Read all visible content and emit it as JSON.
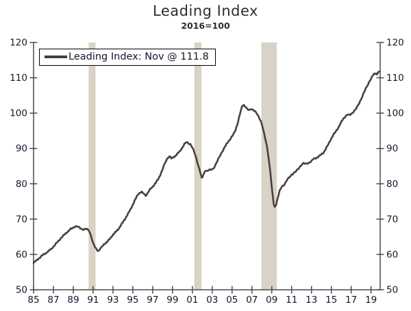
{
  "chart": {
    "title": "Leading Index",
    "subtitle": "2016=100"
  },
  "legend": {
    "label": "Leading Index: Nov @ 111.8"
  },
  "colors": {
    "line": "#4a3f3a",
    "recession_band": "#d7d3c5",
    "axis": "#4a4a4a",
    "tick_text": "#15152a",
    "background": "#ffffff"
  },
  "chart_data": {
    "type": "line",
    "title": "Leading Index",
    "subtitle": "2016=100",
    "xlabel": "",
    "ylabel": "",
    "ylim": [
      50,
      120
    ],
    "xlim": [
      1985.0,
      2019.92
    ],
    "grid": false,
    "legend_position": "top-left",
    "y_ticks": [
      50,
      60,
      70,
      80,
      90,
      100,
      110,
      120
    ],
    "x_ticks": [
      "85",
      "87",
      "89",
      "91",
      "93",
      "95",
      "97",
      "99",
      "01",
      "03",
      "05",
      "07",
      "09",
      "11",
      "13",
      "15",
      "17",
      "19"
    ],
    "x_tick_years": [
      1985,
      1987,
      1989,
      1991,
      1993,
      1995,
      1997,
      1999,
      2001,
      2003,
      2005,
      2007,
      2009,
      2011,
      2013,
      2015,
      2017,
      2019
    ],
    "recessions": [
      [
        1990.55,
        1991.25
      ],
      [
        2001.2,
        2001.92
      ],
      [
        2007.95,
        2009.5
      ]
    ],
    "last_point": {
      "month": "Nov",
      "value": 111.8
    },
    "series": [
      {
        "name": "Leading Index: Nov @ 111.8",
        "points": [
          [
            1985.0,
            57.6
          ],
          [
            1985.25,
            58.2
          ],
          [
            1985.5,
            58.8
          ],
          [
            1985.75,
            59.4
          ],
          [
            1986.0,
            60.0
          ],
          [
            1986.25,
            60.4
          ],
          [
            1986.5,
            60.9
          ],
          [
            1986.75,
            61.5
          ],
          [
            1987.0,
            62.2
          ],
          [
            1987.25,
            63.0
          ],
          [
            1987.5,
            63.8
          ],
          [
            1987.75,
            64.6
          ],
          [
            1988.0,
            65.3
          ],
          [
            1988.25,
            66.0
          ],
          [
            1988.5,
            66.6
          ],
          [
            1988.75,
            67.2
          ],
          [
            1989.0,
            67.6
          ],
          [
            1989.2,
            68.0
          ],
          [
            1989.4,
            67.9
          ],
          [
            1989.6,
            67.6
          ],
          [
            1989.8,
            67.3
          ],
          [
            1990.0,
            67.1
          ],
          [
            1990.2,
            67.2
          ],
          [
            1990.4,
            67.1
          ],
          [
            1990.6,
            66.7
          ],
          [
            1990.8,
            65.2
          ],
          [
            1991.0,
            63.2
          ],
          [
            1991.2,
            62.0
          ],
          [
            1991.4,
            61.2
          ],
          [
            1991.55,
            61.0
          ],
          [
            1991.7,
            61.6
          ],
          [
            1991.9,
            62.2
          ],
          [
            1992.1,
            62.8
          ],
          [
            1992.4,
            63.6
          ],
          [
            1992.7,
            64.4
          ],
          [
            1993.0,
            65.6
          ],
          [
            1993.3,
            66.4
          ],
          [
            1993.6,
            67.4
          ],
          [
            1993.9,
            68.7
          ],
          [
            1994.2,
            70.0
          ],
          [
            1994.5,
            71.4
          ],
          [
            1994.8,
            73.0
          ],
          [
            1995.1,
            74.6
          ],
          [
            1995.4,
            76.5
          ],
          [
            1995.6,
            77.3
          ],
          [
            1995.9,
            77.6
          ],
          [
            1996.1,
            77.3
          ],
          [
            1996.3,
            76.7
          ],
          [
            1996.5,
            77.3
          ],
          [
            1996.7,
            78.3
          ],
          [
            1997.0,
            79.2
          ],
          [
            1997.3,
            80.2
          ],
          [
            1997.6,
            81.6
          ],
          [
            1997.9,
            83.3
          ],
          [
            1998.1,
            84.9
          ],
          [
            1998.3,
            86.3
          ],
          [
            1998.5,
            87.3
          ],
          [
            1998.7,
            87.7
          ],
          [
            1998.9,
            87.2
          ],
          [
            1999.1,
            87.5
          ],
          [
            1999.4,
            88.2
          ],
          [
            1999.7,
            89.1
          ],
          [
            2000.0,
            90.3
          ],
          [
            2000.2,
            91.2
          ],
          [
            2000.4,
            91.8
          ],
          [
            2000.6,
            91.5
          ],
          [
            2000.8,
            91.2
          ],
          [
            2001.0,
            90.2
          ],
          [
            2001.2,
            88.9
          ],
          [
            2001.4,
            87.2
          ],
          [
            2001.6,
            85.2
          ],
          [
            2001.8,
            83.2
          ],
          [
            2001.95,
            81.5
          ],
          [
            2002.1,
            82.5
          ],
          [
            2002.3,
            83.8
          ],
          [
            2002.5,
            83.6
          ],
          [
            2002.7,
            83.9
          ],
          [
            2002.9,
            84.0
          ],
          [
            2003.1,
            84.3
          ],
          [
            2003.3,
            85.2
          ],
          [
            2003.5,
            86.3
          ],
          [
            2003.7,
            87.5
          ],
          [
            2003.9,
            88.6
          ],
          [
            2004.1,
            89.6
          ],
          [
            2004.35,
            90.8
          ],
          [
            2004.6,
            91.9
          ],
          [
            2004.85,
            92.8
          ],
          [
            2005.1,
            93.8
          ],
          [
            2005.35,
            95.3
          ],
          [
            2005.6,
            97.5
          ],
          [
            2005.8,
            99.8
          ],
          [
            2006.0,
            101.8
          ],
          [
            2006.15,
            102.4
          ],
          [
            2006.3,
            102.0
          ],
          [
            2006.5,
            101.2
          ],
          [
            2006.7,
            100.8
          ],
          [
            2006.9,
            101.2
          ],
          [
            2007.1,
            101.0
          ],
          [
            2007.3,
            100.5
          ],
          [
            2007.5,
            99.8
          ],
          [
            2007.7,
            98.9
          ],
          [
            2007.9,
            97.8
          ],
          [
            2008.1,
            95.8
          ],
          [
            2008.3,
            93.2
          ],
          [
            2008.5,
            90.8
          ],
          [
            2008.7,
            87.0
          ],
          [
            2008.9,
            82.0
          ],
          [
            2009.05,
            77.5
          ],
          [
            2009.2,
            74.2
          ],
          [
            2009.3,
            73.4
          ],
          [
            2009.45,
            74.3
          ],
          [
            2009.6,
            76.0
          ],
          [
            2009.8,
            78.0
          ],
          [
            2010.0,
            79.2
          ],
          [
            2010.2,
            79.6
          ],
          [
            2010.4,
            80.4
          ],
          [
            2010.6,
            81.3
          ],
          [
            2010.8,
            81.9
          ],
          [
            2011.0,
            82.6
          ],
          [
            2011.2,
            83.0
          ],
          [
            2011.4,
            83.4
          ],
          [
            2011.6,
            84.0
          ],
          [
            2011.8,
            84.7
          ],
          [
            2012.0,
            85.4
          ],
          [
            2012.2,
            85.8
          ],
          [
            2012.4,
            85.6
          ],
          [
            2012.6,
            85.8
          ],
          [
            2012.8,
            86.1
          ],
          [
            2013.0,
            86.4
          ],
          [
            2013.2,
            87.0
          ],
          [
            2013.45,
            87.3
          ],
          [
            2013.7,
            87.7
          ],
          [
            2013.95,
            88.2
          ],
          [
            2014.2,
            88.8
          ],
          [
            2014.45,
            89.9
          ],
          [
            2014.7,
            91.2
          ],
          [
            2014.95,
            92.6
          ],
          [
            2015.2,
            93.8
          ],
          [
            2015.45,
            94.8
          ],
          [
            2015.7,
            95.9
          ],
          [
            2015.95,
            97.2
          ],
          [
            2016.2,
            98.4
          ],
          [
            2016.45,
            99.2
          ],
          [
            2016.65,
            99.6
          ],
          [
            2016.85,
            99.4
          ],
          [
            2017.0,
            99.8
          ],
          [
            2017.2,
            100.3
          ],
          [
            2017.4,
            100.9
          ],
          [
            2017.6,
            101.7
          ],
          [
            2017.8,
            102.8
          ],
          [
            2018.0,
            104.0
          ],
          [
            2018.2,
            105.3
          ],
          [
            2018.4,
            106.5
          ],
          [
            2018.6,
            107.6
          ],
          [
            2018.8,
            108.8
          ],
          [
            2019.0,
            109.8
          ],
          [
            2019.15,
            110.5
          ],
          [
            2019.3,
            111.0
          ],
          [
            2019.45,
            111.3
          ],
          [
            2019.6,
            111.1
          ],
          [
            2019.75,
            111.5
          ],
          [
            2019.87,
            111.8
          ]
        ]
      }
    ]
  }
}
